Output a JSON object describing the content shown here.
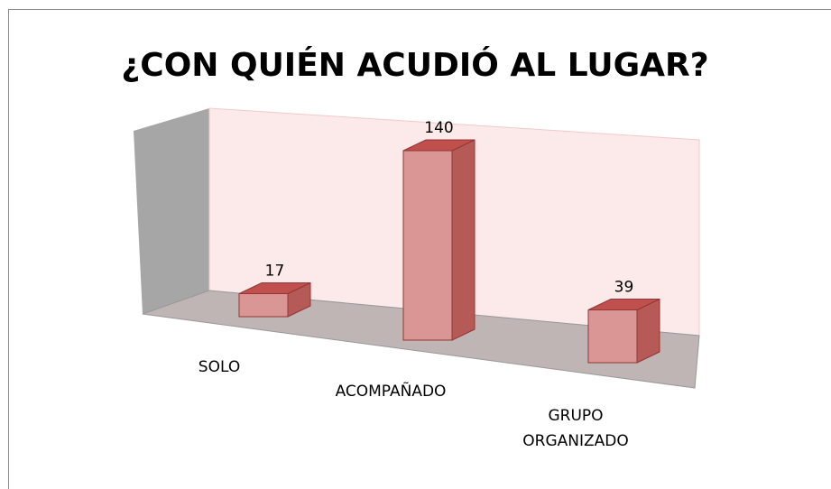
{
  "chart_data": {
    "type": "bar3d",
    "title": "¿CON QUIÉN ACUDIÓ AL LUGAR?",
    "categories": [
      "SOLO",
      "ACOMPAÑADO",
      "GRUPO ORGANIZADO"
    ],
    "values": [
      17,
      140,
      39
    ],
    "color": "#d99694"
  }
}
